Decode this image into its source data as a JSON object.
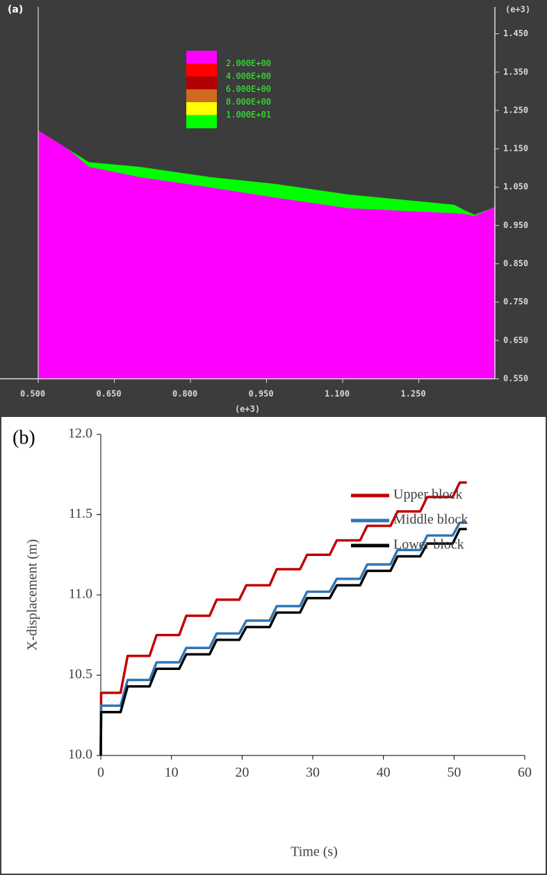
{
  "chart_data": [
    {
      "type": "area",
      "panel_label": "(a)",
      "x": [
        0.5,
        0.56,
        0.6,
        0.7,
        0.84,
        0.97,
        1.11,
        1.25,
        1.32,
        1.34,
        1.36,
        1.4
      ],
      "series": [
        {
          "color": "#00ff00",
          "values": [
            1.198,
            1.148,
            1.115,
            1.103,
            1.076,
            1.058,
            1.031,
            1.013,
            1.004,
            0.99,
            0.978,
            0.998
          ]
        },
        {
          "color": "#ff00ff",
          "values": [
            1.198,
            1.148,
            1.103,
            1.076,
            1.049,
            1.022,
            0.995,
            0.986,
            0.982,
            0.98,
            0.975,
            0.998
          ]
        }
      ],
      "legend_colors": [
        "#ff00ff",
        "#ff0000",
        "#b00000",
        "#d06a20",
        "#ffff00",
        "#00ff00"
      ],
      "legend_labels": [
        "2.000E+00",
        "4.000E+00",
        "6.000E+00",
        "8.000E+00",
        "1.000E+01"
      ],
      "xlim": [
        0.5,
        1.4
      ],
      "ylim": [
        0.55,
        1.52
      ],
      "xticks": [
        {
          "value": 0.5,
          "label": "0.500"
        },
        {
          "value": 0.65,
          "label": "0.650"
        },
        {
          "value": 0.8,
          "label": "0.800"
        },
        {
          "value": 0.95,
          "label": "0.950"
        },
        {
          "value": 1.1,
          "label": "1.100"
        },
        {
          "value": 1.25,
          "label": "1.250"
        }
      ],
      "yticks": [
        {
          "value": 1.45,
          "label": "1.450"
        },
        {
          "value": 1.35,
          "label": "1.350"
        },
        {
          "value": 1.25,
          "label": "1.250"
        },
        {
          "value": 1.15,
          "label": "1.150"
        },
        {
          "value": 1.05,
          "label": "1.050"
        },
        {
          "value": 0.95,
          "label": "0.950"
        },
        {
          "value": 0.85,
          "label": "0.850"
        },
        {
          "value": 0.75,
          "label": "0.750"
        },
        {
          "value": 0.65,
          "label": "0.650"
        },
        {
          "value": 0.55,
          "label": "0.550"
        }
      ],
      "x_unit": "(e+3)",
      "y_unit": "(e+3)"
    },
    {
      "type": "line",
      "panel_label": "(b)",
      "x_label": "Time (s)",
      "y_label": "X-displacement (m)",
      "x": [
        0,
        0.05,
        2.8,
        3.8,
        6.9,
        7.9,
        11.1,
        12.1,
        15.4,
        16.4,
        19.6,
        20.6,
        23.9,
        24.9,
        28.2,
        29.2,
        32.4,
        33.4,
        36.7,
        37.7,
        41.0,
        42.0,
        45.2,
        46.2,
        49.8,
        50.8,
        51.8
      ],
      "series": [
        {
          "name": "Upper block",
          "color": "#c00000",
          "values": [
            10.0,
            10.39,
            10.39,
            10.62,
            10.62,
            10.75,
            10.75,
            10.87,
            10.87,
            10.97,
            10.97,
            11.06,
            11.06,
            11.16,
            11.16,
            11.25,
            11.25,
            11.34,
            11.34,
            11.43,
            11.43,
            11.52,
            11.52,
            11.61,
            11.61,
            11.7,
            11.7
          ]
        },
        {
          "name": "Middle block",
          "color": "#2e75b6",
          "values": [
            10.0,
            10.31,
            10.31,
            10.47,
            10.47,
            10.58,
            10.58,
            10.67,
            10.67,
            10.76,
            10.76,
            10.84,
            10.84,
            10.93,
            10.93,
            11.02,
            11.02,
            11.1,
            11.1,
            11.19,
            11.19,
            11.28,
            11.28,
            11.37,
            11.37,
            11.45,
            11.45
          ]
        },
        {
          "name": "Lower block",
          "color": "#000000",
          "values": [
            10.0,
            10.27,
            10.27,
            10.43,
            10.43,
            10.54,
            10.54,
            10.63,
            10.63,
            10.72,
            10.72,
            10.8,
            10.8,
            10.89,
            10.89,
            10.98,
            10.98,
            11.06,
            11.06,
            11.15,
            11.15,
            11.24,
            11.24,
            11.32,
            11.32,
            11.41,
            11.41
          ]
        }
      ],
      "xlim": [
        0,
        60
      ],
      "ylim": [
        10.0,
        12.0
      ],
      "xticks": [
        0,
        10,
        20,
        30,
        40,
        50,
        60
      ],
      "yticks": [
        {
          "value": 10.0,
          "label": "10.0"
        },
        10.5,
        {
          "value": 11.0,
          "label": "11.0"
        },
        11.5,
        {
          "value": 12.0,
          "label": "12.0"
        }
      ],
      "legend": "right"
    }
  ]
}
